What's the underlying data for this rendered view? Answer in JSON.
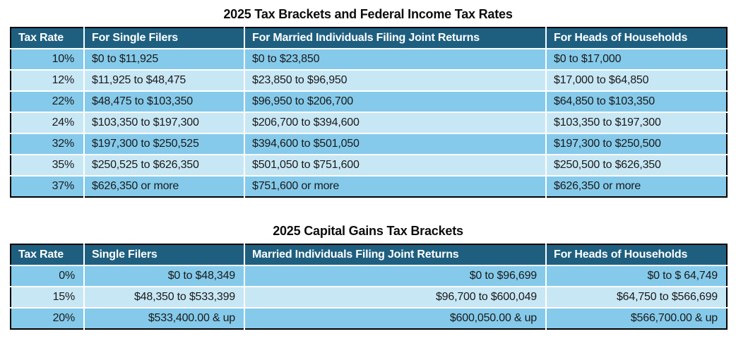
{
  "colors": {
    "header_bg": "#1e5f80",
    "header_text": "#ffffff",
    "row_medium": "#85caea",
    "row_light": "#c8e7f5",
    "divider": "#ffffff",
    "outer_border": "#000000",
    "cell_text": "#1a1a1a"
  },
  "tables": [
    {
      "title": "2025 Tax Brackets and Federal Income Tax Rates",
      "columns": [
        "Tax Rate",
        "For Single Filers",
        "For Married Individuals Filing Joint Returns",
        "For Heads of Households"
      ],
      "body_align": "left",
      "rows": [
        [
          "10%",
          "$0 to $11,925",
          "$0 to $23,850",
          "$0 to $17,000"
        ],
        [
          "12%",
          "$11,925 to $48,475",
          "$23,850 to $96,950",
          "$17,000 to $64,850"
        ],
        [
          "22%",
          "$48,475 to $103,350",
          "$96,950 to $206,700",
          "$64,850 to $103,350"
        ],
        [
          "24%",
          "$103,350 to $197,300",
          "$206,700 to $394,600",
          "$103,350 to $197,300"
        ],
        [
          "32%",
          "$197,300 to $250,525",
          "$394,600 to $501,050",
          "$197,300 to $250,500"
        ],
        [
          "35%",
          "$250,525 to $626,350",
          "$501,050 to $751,600",
          "$250,500 to $626,350"
        ],
        [
          "37%",
          "$626,350 or more",
          "$751,600 or more",
          "$626,350 or more"
        ]
      ]
    },
    {
      "title": "2025 Capital Gains Tax Brackets",
      "columns": [
        "Tax Rate",
        "Single Filers",
        "Married Individuals Filing Joint Returns",
        "For Heads of Households"
      ],
      "body_align": "right",
      "rows": [
        [
          "0%",
          "$0 to $48,349",
          "$0 to $96,699",
          "$0 to $ 64,749"
        ],
        [
          "15%",
          "$48,350 to $533,399",
          "$96,700 to $600,049",
          "$64,750 to $566,699"
        ],
        [
          "20%",
          "$533,400.00 & up",
          "$600,050.00 & up",
          "$566,700.00 & up"
        ]
      ]
    }
  ]
}
